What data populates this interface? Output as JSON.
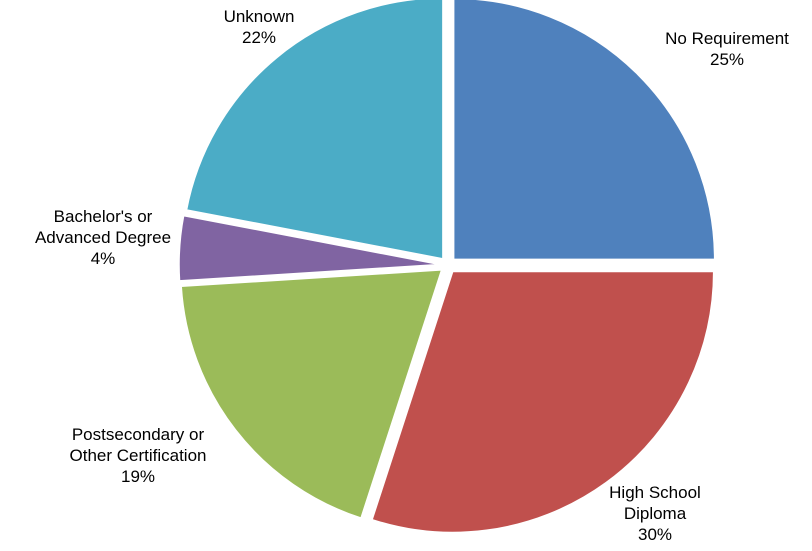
{
  "chart_data": {
    "type": "pie",
    "title": "",
    "slices": [
      {
        "name_lines": [
          "No Requirement"
        ],
        "value": 25,
        "value_label": "25%",
        "color": "#4F81BD"
      },
      {
        "name_lines": [
          "High School",
          "Diploma"
        ],
        "value": 30,
        "value_label": "30%",
        "color": "#C0504D"
      },
      {
        "name_lines": [
          "Postsecondary or",
          "Other Certification"
        ],
        "value": 19,
        "value_label": "19%",
        "color": "#9BBB59"
      },
      {
        "name_lines": [
          "Bachelor's or",
          "Advanced Degree"
        ],
        "value": 4,
        "value_label": "4%",
        "color": "#8064A2"
      },
      {
        "name_lines": [
          "Unknown"
        ],
        "value": 22,
        "value_label": "22%",
        "color": "#4BACC6"
      }
    ],
    "legend": "none",
    "exploded": true
  }
}
